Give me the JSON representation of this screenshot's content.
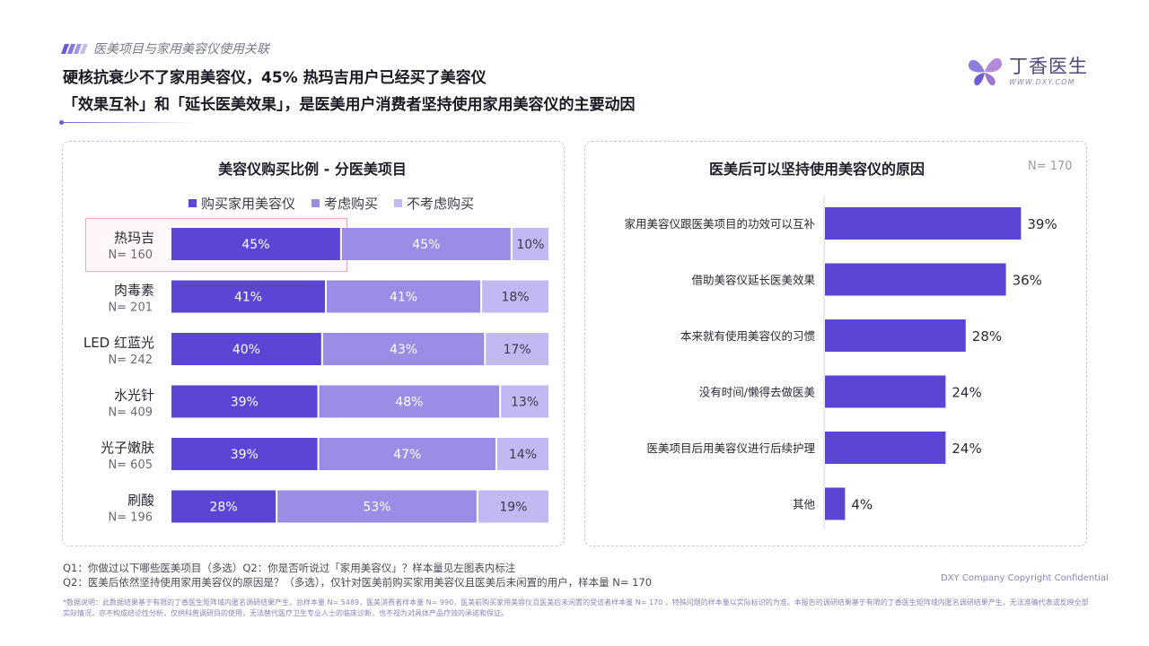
{
  "section_tag": "医美项目与家用美容仪使用关联",
  "headline_line1": "硬核抗衰少不了家用美容仪，45% 热玛吉用户已经买了美容仪",
  "headline_line2": "「效果互补」和「延长医美效果」，是医美用户消费者坚持使用家用美容仪的主要动因",
  "logo": {
    "cn": "丁香医生",
    "en": "WWW.DXY.COM",
    "icon": "butterfly-logo-icon"
  },
  "colors": {
    "buy": "#5b45d4",
    "consider": "#9b8ce6",
    "not_consider": "#c3b9f2",
    "accent": "#6e5bd6"
  },
  "chart_data": [
    {
      "type": "bar",
      "orientation": "horizontal",
      "stacked": "percent",
      "title": "美容仪购买比例 - 分医美项目",
      "legend_position": "top",
      "categories": [
        "热玛吉",
        "肉毒素",
        "LED 红蓝光",
        "水光针",
        "光子嫩肤",
        "刷酸"
      ],
      "sample_sizes": [
        "N= 160",
        "N= 201",
        "N= 242",
        "N= 409",
        "N= 605",
        "N= 196"
      ],
      "series": [
        {
          "name": "购买家用美容仪",
          "values": [
            45,
            41,
            40,
            39,
            39,
            28
          ]
        },
        {
          "name": "考虑购买",
          "values": [
            45,
            41,
            43,
            48,
            47,
            53
          ]
        },
        {
          "name": "不考虑购买",
          "values": [
            10,
            18,
            17,
            13,
            14,
            19
          ]
        }
      ],
      "value_suffix": "%",
      "xlim": [
        0,
        100
      ]
    },
    {
      "type": "bar",
      "orientation": "horizontal",
      "title": "医美后可以坚持使用美容仪的原因",
      "sample_size": "N= 170",
      "categories": [
        "家用美容仪跟医美项目的功效可以互补",
        "借助美容仪延长医美效果",
        "本来就有使用美容仪的习惯",
        "没有时间/懒得去做医美",
        "医美项目后用美容仪进行后续护理",
        "其他"
      ],
      "values": [
        39,
        36,
        28,
        24,
        24,
        4
      ],
      "value_suffix": "%",
      "xlim": [
        0,
        40
      ]
    }
  ],
  "footnotes": {
    "q1": "Q1：你做过以下哪些医美项目（多选）Q2：你是否听说过「家用美容仪」？样本量见左图表内标注",
    "q2": "Q2：医美后依然坚持使用家用美容仪的原因是？（多选），仅针对医美前购买家用美容仪且医美后未闲置的用户，样本量 N= 170"
  },
  "copyright": "DXY Company Copyright Confidential",
  "disclaimer": "*数据说明：此数据结果基于有限的丁香医生矩阵域内匿名调研结果产生，总样本量 N= 5489，医美消费者样本量 N= 990，医美前购买家用美容仪且医美后未闲置的受访者样本量 N= 170 ，特殊问题的样本量以实际标识的为准。本报告的调研结果基于有限的丁香医生矩阵域内匿名调研结果产生，无法准确代表或反映全部实际情况，亦不构成结论性分析，仅供科普调研目的使用，无法替代医疗卫生专业人士的临床诊断，也不视为对具体产品疗效的承诺和保证。"
}
